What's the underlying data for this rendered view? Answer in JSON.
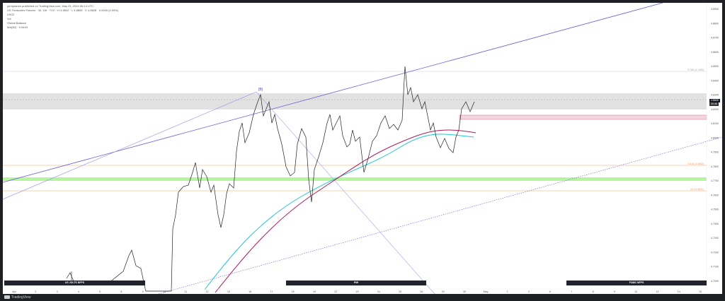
{
  "header": {
    "title": "jorrnjnamm published on TradingView.com, May 01, 2024 08:14 UTC",
    "symbol_line": "US Treasuries Futures · 30, 1W · TVC · H 4.8842 · L 4.8808 · C 4.8826 · 0.0000 (0.00%)",
    "indicator_1": "US02",
    "indicator_2": "Vol",
    "indicator_3": "Global Balance",
    "indicator_4": "MA(50) · 0.9443"
  },
  "chart_data": {
    "type": "line",
    "wave_label": "(B)",
    "fib_labels": [
      "0.786 (4.7485)",
      "0.618 (4.6852)",
      "0.5 (4.6501)"
    ],
    "price_boxes": [
      "4.8805",
      "00:46"
    ],
    "y_ticks": [
      "4.8900",
      "4.8800",
      "4.8700",
      "4.8600",
      "4.8500",
      "4.8400",
      "4.8300",
      "4.8200",
      "4.8100",
      "4.8000",
      "4.7900",
      "4.7800",
      "4.7700",
      "4.7600",
      "4.7500",
      "4.7400",
      "4.7300",
      "4.7200",
      "4.7100",
      "4.7000"
    ],
    "x_ticks": [
      "Apr",
      "2",
      "3",
      "4",
      "5",
      "8",
      "9",
      "10",
      "11",
      "12",
      "15",
      "16",
      "17",
      "18",
      "19",
      "22",
      "23",
      "24",
      "25",
      "26",
      "29",
      "30",
      "May",
      "2",
      "3",
      "6",
      "7",
      "8",
      "9",
      "10",
      "13",
      "14",
      "15"
    ],
    "series": [
      {
        "name": "price",
        "color": "#222222"
      },
      {
        "name": "MA fast",
        "color": "#1fc6d6"
      },
      {
        "name": "MA slow",
        "color": "#b0195a"
      }
    ]
  },
  "banners": [
    "US JOLTS NFPS",
    "PMI",
    "FOMC NFPS"
  ],
  "footer": {
    "brand": "TradingView"
  },
  "colors": {
    "channel_line": "#5b4fd9",
    "fib_orange": "#f4a261",
    "zone_green": "#b6f5a0",
    "zone_grey": "#e4e4e4",
    "zone_pink": "#e06a8a"
  }
}
